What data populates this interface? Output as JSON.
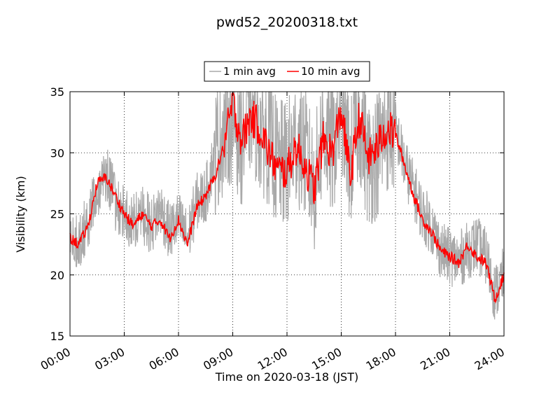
{
  "chart_data": {
    "type": "line",
    "title": "pwd52_20200318.txt",
    "xlabel": "Time on 2020-03-18 (JST)",
    "ylabel": "Visibility (km)",
    "xlim": [
      "00:00",
      "24:00"
    ],
    "ylim": [
      15,
      35
    ],
    "x_ticks": [
      "00:00",
      "03:00",
      "06:00",
      "09:00",
      "12:00",
      "15:00",
      "18:00",
      "21:00",
      "24:00"
    ],
    "y_ticks": [
      "15",
      "20",
      "25",
      "30",
      "35"
    ],
    "grid": true,
    "legend_position": "top-center",
    "series": [
      {
        "name": "1 min avg",
        "color": "#a9a9a9",
        "noise_envelope_km": 3,
        "x_hours": [
          0,
          0.5,
          1,
          1.5,
          2,
          2.5,
          3,
          3.5,
          4,
          4.5,
          5,
          5.5,
          6,
          6.5,
          7,
          7.5,
          8,
          8.5,
          9,
          9.5,
          10,
          10.5,
          11,
          11.5,
          12,
          12.5,
          13,
          13.5,
          14,
          14.5,
          15,
          15.5,
          16,
          16.5,
          17,
          17.5,
          18,
          18.5,
          19,
          19.5,
          20,
          20.5,
          21,
          21.5,
          22,
          22.5,
          23,
          23.5,
          24
        ],
        "values": [
          23,
          22.8,
          24.5,
          27,
          28.5,
          26,
          25,
          24.2,
          25,
          24,
          25.5,
          23.5,
          24.5,
          23,
          26,
          26.5,
          30,
          32,
          33,
          31,
          34,
          32,
          31,
          29,
          29,
          31,
          30,
          27,
          32,
          30,
          34,
          29,
          33,
          29,
          30,
          32,
          32,
          29,
          27,
          25,
          24,
          22,
          21.5,
          21.2,
          22,
          22.5,
          21.5,
          18.5,
          20
        ]
      },
      {
        "name": "10 min avg",
        "color": "#ff0000",
        "x_hours": [
          0,
          0.5,
          1,
          1.5,
          2,
          2.5,
          3,
          3.5,
          4,
          4.5,
          5,
          5.5,
          6,
          6.5,
          7,
          7.5,
          8,
          8.5,
          9,
          9.5,
          10,
          10.5,
          11,
          11.5,
          12,
          12.5,
          13,
          13.5,
          14,
          14.5,
          15,
          15.5,
          16,
          16.5,
          17,
          17.5,
          18,
          18.5,
          19,
          19.5,
          20,
          20.5,
          21,
          21.5,
          22,
          22.5,
          23,
          23.5,
          24
        ],
        "values": [
          23,
          22.5,
          24,
          27.5,
          28,
          26.5,
          25,
          24,
          25,
          24,
          24.5,
          23,
          24.5,
          22.5,
          25.5,
          26.5,
          28,
          30.5,
          34,
          31,
          33,
          32,
          30,
          28.5,
          28.5,
          30.5,
          29,
          27,
          31,
          30,
          33.5,
          28,
          33,
          29.5,
          30.5,
          32,
          31.5,
          29,
          26.5,
          24.5,
          23.5,
          22,
          21.5,
          21,
          22.5,
          21.5,
          21,
          18,
          20
        ]
      }
    ]
  }
}
